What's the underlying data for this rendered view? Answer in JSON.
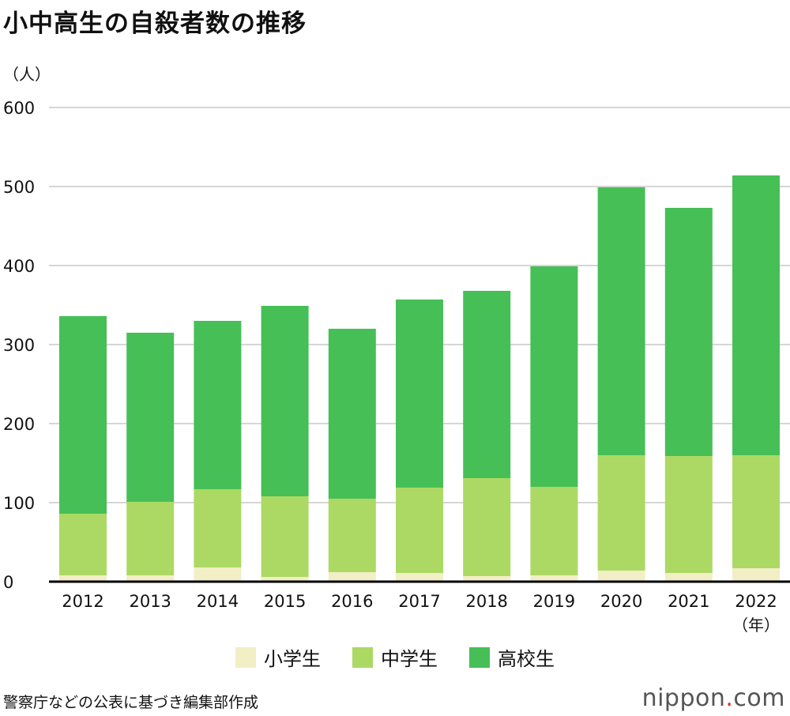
{
  "title": "小中高生の自殺者数の推移",
  "source": "警察庁などの公表に基づき編集部作成",
  "logo": {
    "name": "nippon",
    "dot": ".",
    "suffix": "com"
  },
  "chart_data": {
    "type": "bar",
    "stacked": true,
    "title": "小中高生の自殺者数の推移",
    "ylabel": "（人）",
    "xlabel": "（年）",
    "ylim": [
      0,
      600
    ],
    "yticks": [
      0,
      100,
      200,
      300,
      400,
      500,
      600
    ],
    "grid": true,
    "legend_position": "bottom",
    "categories": [
      "2012",
      "2013",
      "2014",
      "2015",
      "2016",
      "2017",
      "2018",
      "2019",
      "2020",
      "2021",
      "2022"
    ],
    "series": [
      {
        "name": "小学生",
        "color": "#f2eec6",
        "values": [
          8,
          8,
          18,
          6,
          12,
          11,
          7,
          8,
          14,
          11,
          17
        ]
      },
      {
        "name": "中学生",
        "color": "#acd964",
        "values": [
          78,
          93,
          99,
          102,
          93,
          108,
          124,
          112,
          146,
          148,
          143
        ]
      },
      {
        "name": "高校生",
        "color": "#46bf57",
        "values": [
          250,
          214,
          213,
          241,
          215,
          238,
          237,
          279,
          339,
          314,
          354
        ]
      }
    ]
  }
}
